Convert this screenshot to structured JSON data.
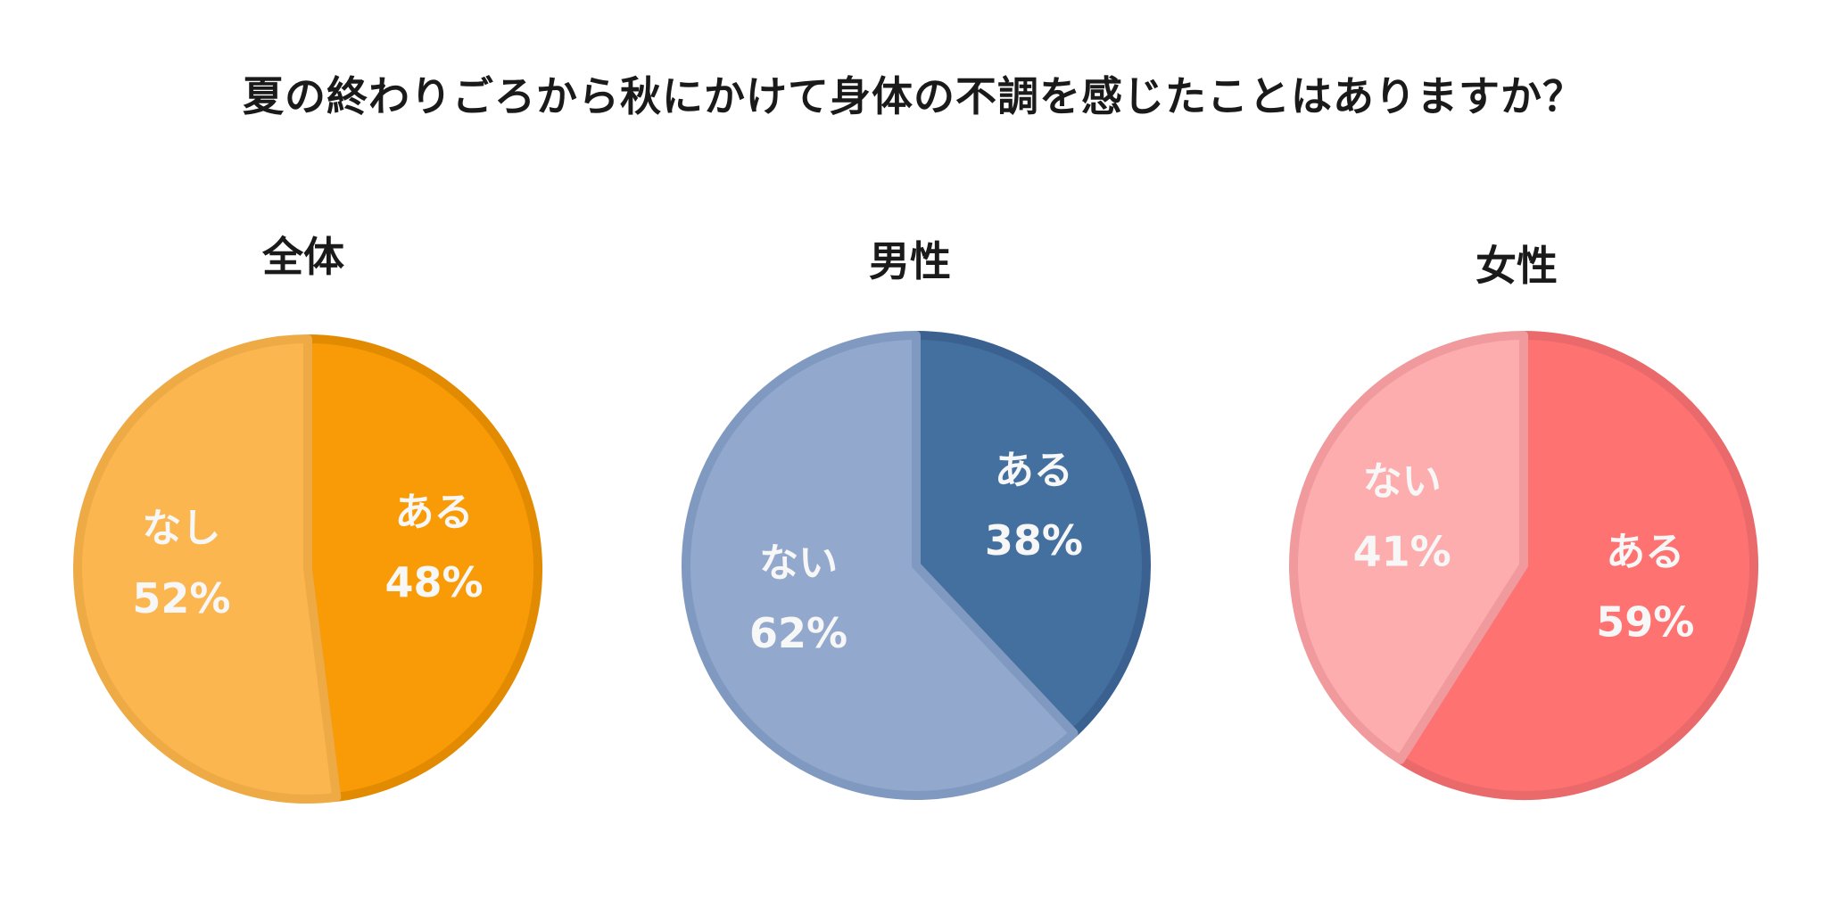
{
  "title": "夏の終わりごろから秋にかけて身体の不調を感じたことはありますか？",
  "chart_data": [
    {
      "type": "pie",
      "title": "全体",
      "slices": [
        {
          "label": "ある",
          "value": 48,
          "display": "48%",
          "color": "#f99b06",
          "stroke": "#e38b00"
        },
        {
          "label": "なし",
          "value": 52,
          "display": "52%",
          "color": "#fbb650",
          "stroke": "#eeaa45"
        }
      ]
    },
    {
      "type": "pie",
      "title": "男性",
      "slices": [
        {
          "label": "ある",
          "value": 38,
          "display": "38%",
          "color": "#44709f",
          "stroke": "#3a6190"
        },
        {
          "label": "ない",
          "value": 62,
          "display": "62%",
          "color": "#92a8cc",
          "stroke": "#8099c0"
        }
      ]
    },
    {
      "type": "pie",
      "title": "女性",
      "slices": [
        {
          "label": "ある",
          "value": 59,
          "display": "59%",
          "color": "#ff7272",
          "stroke": "#ea6a6c"
        },
        {
          "label": "ない",
          "value": 41,
          "display": "41%",
          "color": "#fdadad",
          "stroke": "#f09a9d"
        }
      ]
    }
  ]
}
